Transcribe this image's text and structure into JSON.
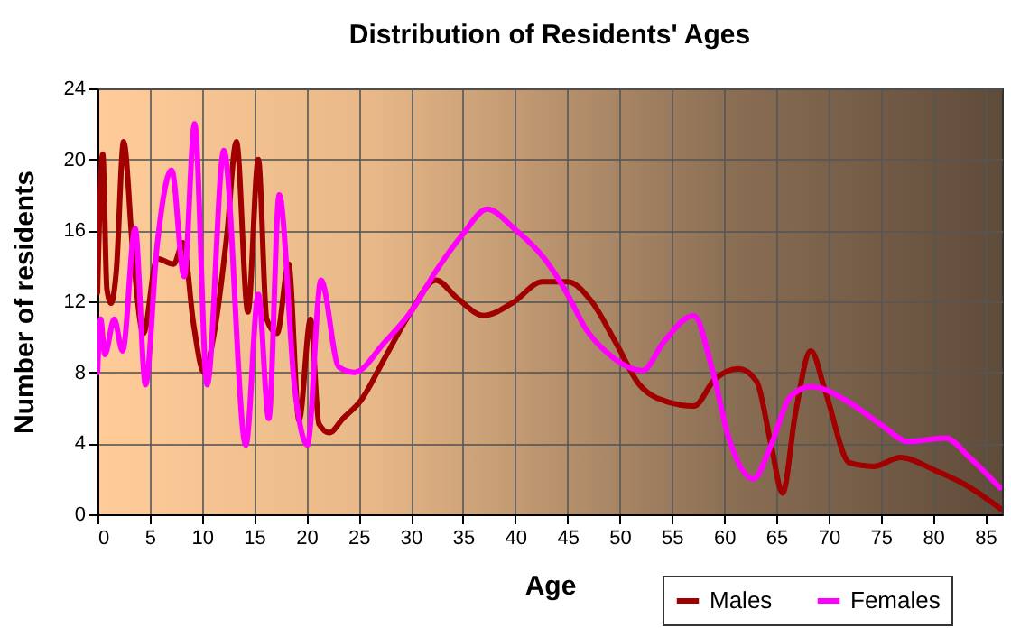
{
  "chart_data": {
    "type": "line",
    "title": "Distribution of Residents' Ages",
    "xlabel": "Age",
    "ylabel": "Number of residents",
    "xlim": [
      0,
      86.6
    ],
    "ylim": [
      0,
      24
    ],
    "xticks": [
      0,
      5,
      10,
      15,
      20,
      25,
      30,
      35,
      40,
      45,
      50,
      55,
      60,
      65,
      70,
      75,
      80,
      85
    ],
    "yticks": [
      0,
      4,
      8,
      12,
      16,
      20,
      24
    ],
    "grid": true,
    "legend": "bottom right",
    "marker": "none",
    "line_style": "solid",
    "series": [
      {
        "name": "Males",
        "color": "#a00000",
        "x": [
          0,
          0.5,
          0.9,
          1.3,
          1.8,
          2.5,
          3.4,
          4.4,
          5.7,
          7.3,
          8.2,
          9.2,
          10.2,
          11.2,
          12.4,
          13.3,
          14.4,
          15.4,
          16.2,
          17.2,
          18.3,
          19.3,
          20.4,
          21.2,
          22.2,
          23.5,
          25.2,
          27.5,
          30,
          32.4,
          34.4,
          37,
          39.7,
          42.6,
          45,
          47.3,
          49.6,
          51.9,
          54.8,
          57.1,
          59.1,
          61.4,
          63.1,
          64.5,
          65.6,
          66.8,
          68.3,
          69.7,
          72,
          74.3,
          76.9,
          80.1,
          83,
          86.5
        ],
        "values": [
          12.5,
          20.3,
          12.7,
          11.9,
          13.7,
          21,
          14.7,
          10.2,
          14.4,
          14.1,
          15.3,
          10.7,
          8,
          10.3,
          15.8,
          21,
          11.4,
          20,
          11,
          10.2,
          14.1,
          5.3,
          11,
          5.1,
          4.6,
          5.4,
          6.4,
          8.8,
          11.4,
          13.2,
          12.2,
          11.2,
          11.9,
          13.1,
          13.1,
          12,
          9.7,
          7.3,
          6.3,
          6.1,
          7.6,
          8.2,
          7.5,
          3.9,
          1.2,
          5.6,
          9.2,
          6.9,
          2.9,
          2.7,
          3.2,
          2.5,
          1.7,
          0.3
        ]
      },
      {
        "name": "Females",
        "color": "#ff00ff",
        "x": [
          0,
          0.3,
          0.7,
          1.6,
          2.4,
          3.6,
          4.6,
          5.7,
          7.1,
          8.3,
          9.3,
          10.5,
          12.1,
          14.2,
          15.4,
          16.4,
          17.4,
          18.9,
          20.1,
          21.4,
          23.1,
          24.6,
          27.5,
          30,
          32.4,
          35,
          37.3,
          39.9,
          42.8,
          45,
          46.7,
          49,
          52.2,
          54.2,
          57.1,
          58.8,
          60.5,
          62.8,
          64.5,
          66.3,
          68.3,
          72,
          74.9,
          77.7,
          81.2,
          83.5,
          86.4
        ],
        "values": [
          8,
          11,
          9,
          11,
          9.2,
          16.1,
          7.3,
          15.1,
          19.4,
          13.4,
          22,
          7.3,
          20.5,
          3.9,
          12.4,
          5.4,
          18,
          7,
          3.9,
          13.2,
          8.3,
          8,
          9.7,
          11.4,
          13.7,
          15.8,
          17.2,
          16.1,
          14.4,
          12.4,
          10.5,
          9,
          8.1,
          9.7,
          11.2,
          8.3,
          4.2,
          2,
          3.9,
          6.6,
          7.2,
          6.3,
          5.1,
          4.1,
          4.3,
          3.2,
          1.5
        ]
      }
    ]
  }
}
